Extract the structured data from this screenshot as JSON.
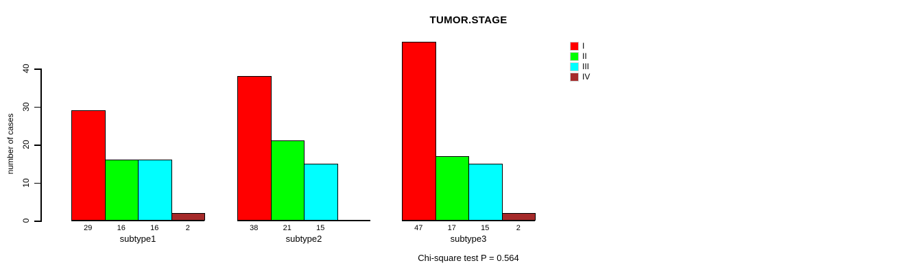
{
  "chart_data": {
    "type": "bar",
    "title": "TUMOR.STAGE",
    "ylabel": "number of cases",
    "xlabel": "",
    "categories": [
      "subtype1",
      "subtype2",
      "subtype3"
    ],
    "series": [
      {
        "name": "I",
        "color": "#ff0000",
        "values": [
          29,
          38,
          47
        ]
      },
      {
        "name": "II",
        "color": "#00ff00",
        "values": [
          16,
          21,
          17
        ]
      },
      {
        "name": "III",
        "color": "#00ffff",
        "values": [
          16,
          15,
          15
        ]
      },
      {
        "name": "IV",
        "color": "#a52a2a",
        "values": [
          2,
          0,
          2
        ]
      }
    ],
    "bar_value_labels": [
      [
        "29",
        "16",
        "16",
        "2"
      ],
      [
        "38",
        "21",
        "15",
        ""
      ],
      [
        "47",
        "17",
        "15",
        "2"
      ]
    ],
    "yticks": [
      0,
      10,
      20,
      30,
      40
    ],
    "ylim": [
      0,
      47
    ],
    "grid": false,
    "legend_position": "top-right",
    "legend_labels": [
      "I",
      "II",
      "III",
      "IV"
    ],
    "annotation": "Chi-square test P = 0.564"
  }
}
